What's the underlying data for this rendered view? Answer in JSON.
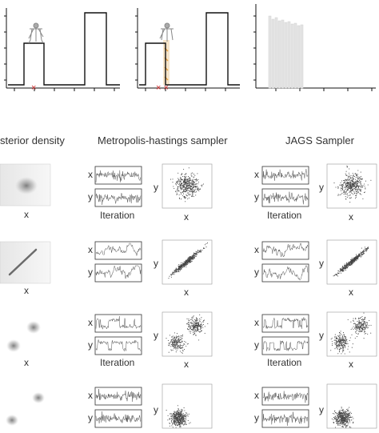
{
  "headers": {
    "posterior": "sterior density",
    "mh": "Metropolis-hastings sampler",
    "jags": "JAGS Sampler"
  },
  "axis_letters": {
    "x": "x",
    "y": "y",
    "iteration": "Iteration"
  },
  "top_markers": {
    "panel1": "×",
    "panel2": "× ×"
  },
  "colors": {
    "line": "#111111",
    "marker": "#cc2222",
    "trace": "#555555",
    "scatter": "#444444",
    "density": "#6e6e6e",
    "orange": "#e8a040"
  },
  "rows": [
    {
      "kind": "single-blob"
    },
    {
      "kind": "diagonal"
    },
    {
      "kind": "two-blobs"
    },
    {
      "kind": "two-far-blobs"
    }
  ]
}
